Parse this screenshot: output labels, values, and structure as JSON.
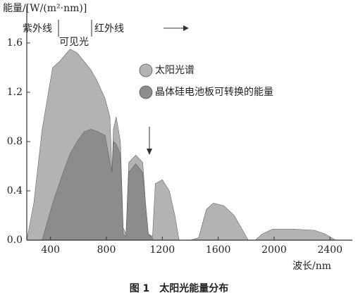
{
  "chart_data": {
    "type": "area",
    "y_label": "能量/[W/(m²·nm)]",
    "x_label": "波长/nm",
    "caption": "图 1　太阳光能量分布",
    "annotations": [
      "紫外线",
      "可见光",
      "红外线"
    ],
    "xlim": [
      230,
      2560
    ],
    "xticks": [
      400,
      800,
      1200,
      1600,
      2000,
      2400
    ],
    "ylim": [
      0,
      1.9
    ],
    "yticks": [
      {
        "value": 0,
        "label": "0.0"
      },
      0.4,
      0.8,
      1.2,
      1.6
    ],
    "series": [
      {
        "name": "太阳光谱",
        "color": "#b3b3b3",
        "x": [
          230,
          280,
          340,
          415,
          465,
          540,
          590,
          640,
          690,
          730,
          790,
          825,
          840,
          850,
          870,
          900,
          920,
          940,
          960,
          1010,
          1060,
          1080,
          1100,
          1130,
          1150,
          1200,
          1250,
          1290,
          1320,
          1400,
          1460,
          1515,
          1565,
          1640,
          1715,
          1765,
          1815,
          1865,
          1915,
          1990,
          2140,
          2290,
          2365,
          2440
        ],
        "values": [
          0,
          0.3,
          0.9,
          1.4,
          1.45,
          1.55,
          1.52,
          1.45,
          1.38,
          1.3,
          1.15,
          1.0,
          0.55,
          0.9,
          1.0,
          0.8,
          0.1,
          0.05,
          0.63,
          0.69,
          0.63,
          0.3,
          0.05,
          0.03,
          0.46,
          0.49,
          0.4,
          0.2,
          0,
          0,
          0.02,
          0.25,
          0.3,
          0.28,
          0.2,
          0.1,
          0,
          0,
          0.05,
          0.09,
          0.09,
          0.08,
          0.05,
          0
        ]
      },
      {
        "name": "晶体硅电池板可转换的能量",
        "color": "#8c8c8c",
        "x": [
          340,
          415,
          490,
          540,
          590,
          640,
          690,
          740,
          790,
          840,
          850,
          870,
          900,
          920,
          940,
          960,
          1010,
          1060,
          1080,
          1100,
          1130
        ],
        "values": [
          0,
          0.3,
          0.55,
          0.7,
          0.8,
          0.88,
          0.9,
          0.88,
          0.85,
          0.55,
          0.8,
          0.78,
          0.7,
          0.05,
          0.03,
          0.55,
          0.62,
          0.55,
          0.3,
          0.05,
          0.02
        ]
      }
    ]
  }
}
